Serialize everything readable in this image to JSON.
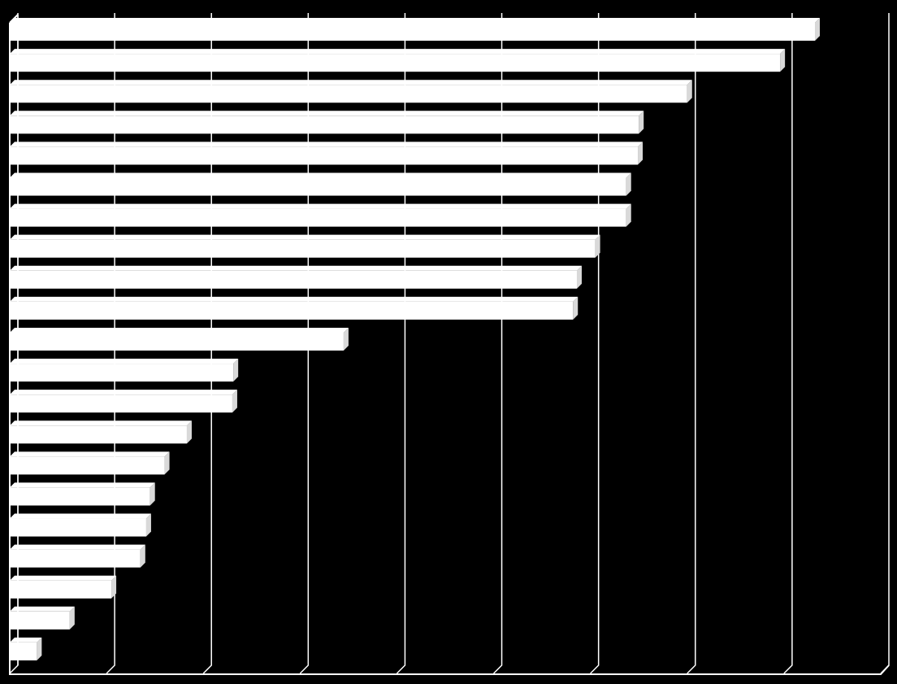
{
  "colors": {
    "background": "#000000",
    "bar": "#ffffff",
    "bar_shade": "#d9d9d9",
    "grid": "#ffffff"
  },
  "chart_data": {
    "type": "bar",
    "orientation": "horizontal",
    "title": "",
    "xlabel": "",
    "ylabel": "",
    "grid": true,
    "legend": "none",
    "xlim": [
      0,
      9
    ],
    "gridlines": [
      0,
      1,
      2,
      3,
      4,
      5,
      6,
      7,
      8,
      9
    ],
    "values": [
      8.32,
      7.96,
      7.0,
      6.5,
      6.49,
      6.37,
      6.37,
      6.05,
      5.86,
      5.82,
      3.45,
      2.31,
      2.3,
      1.83,
      1.6,
      1.45,
      1.41,
      1.35,
      1.05,
      0.62,
      0.28
    ]
  }
}
